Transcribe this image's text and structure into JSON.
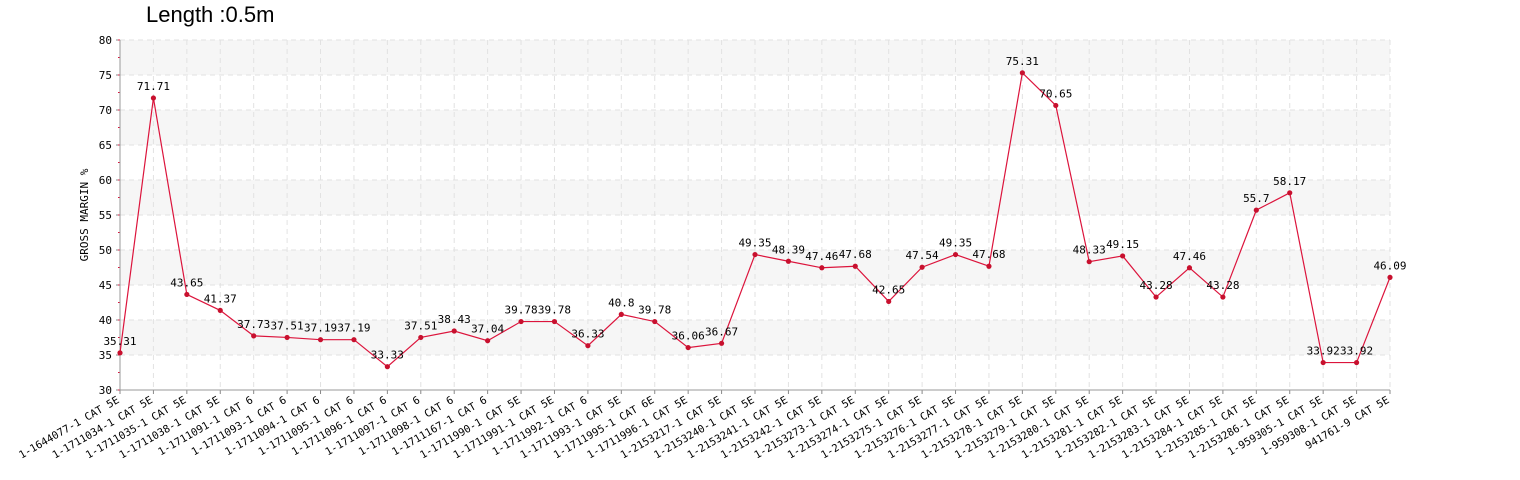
{
  "chart_data": {
    "type": "line",
    "title": "Length :0.5m",
    "xlabel": "",
    "ylabel": "GROSS MARGIN %",
    "ylim": [
      30,
      80
    ],
    "yticks": [
      30,
      35,
      40,
      45,
      50,
      55,
      60,
      65,
      70,
      75,
      80
    ],
    "grid": true,
    "categories": [
      "1-1644077-1 CAT 5E",
      "1-1711034-1 CAT 5E",
      "1-1711035-1 CAT 5E",
      "1-1711038-1 CAT 5E",
      "1-1711091-1 CAT 6",
      "1-1711093-1 CAT 6",
      "1-1711094-1 CAT 6",
      "1-1711095-1 CAT 6",
      "1-1711096-1 CAT 6",
      "1-1711097-1 CAT 6",
      "1-1711098-1 CAT 6",
      "1-1711167-1 CAT 6",
      "1-1711990-1 CAT 5E",
      "1-1711991-1 CAT 5E",
      "1-1711992-1 CAT 6",
      "1-1711993-1 CAT 5E",
      "1-1711995-1 CAT 6E",
      "1-1711996-1 CAT 5E",
      "1-2153217-1 CAT 5E",
      "1-2153240-1 CAT 5E",
      "1-2153241-1 CAT 5E",
      "1-2153242-1 CAT 5E",
      "1-2153273-1 CAT 5E",
      "1-2153274-1 CAT 5E",
      "1-2153275-1 CAT 5E",
      "1-2153276-1 CAT 5E",
      "1-2153277-1 CAT 5E",
      "1-2153278-1 CAT 5E",
      "1-2153279-1 CAT 5E",
      "1-2153280-1 CAT 5E",
      "1-2153281-1 CAT 5E",
      "1-2153282-1 CAT 5E",
      "1-2153283-1 CAT 5E",
      "1-2153284-1 CAT 5E",
      "1-2153285-1 CAT 5E",
      "1-2153286-1 CAT 5E",
      "1-959305-1 CAT 5E",
      "1-959308-1 CAT 5E",
      "941761-9 CAT 5E"
    ],
    "series": [
      {
        "values": [
          35.31,
          71.71,
          43.65,
          41.37,
          37.73,
          37.51,
          37.19,
          37.19,
          33.33,
          37.51,
          38.43,
          37.04,
          39.78,
          39.78,
          36.33,
          40.8,
          39.78,
          36.06,
          36.67,
          49.35,
          48.39,
          47.46,
          47.68,
          42.65,
          47.54,
          49.35,
          47.68,
          75.31,
          70.65,
          48.33,
          49.15,
          43.28,
          47.46,
          43.28,
          55.7,
          58.17,
          33.92,
          33.92,
          46.09
        ],
        "labels": [
          "35.31",
          "71.71",
          "43.65",
          "41.37",
          "37.73",
          "37.51",
          "37.19",
          "37.19",
          "33.33",
          "37.51",
          "38.43",
          "37.04",
          "39.78",
          "39.78",
          "36.33",
          "40.8",
          "39.78",
          "36.06",
          "36.67",
          "49.35",
          "48.39",
          "47.46",
          "47.68",
          "42.65",
          "47.54",
          "49.35",
          "47.68",
          "75.31",
          "70.65",
          "48.33",
          "49.15",
          "43.28",
          "47.46",
          "43.28",
          "55.7",
          "58.17",
          "33.92",
          "33.92",
          "46.09"
        ],
        "line_color": "#dc143c",
        "marker_color": "#c8102e"
      }
    ]
  }
}
